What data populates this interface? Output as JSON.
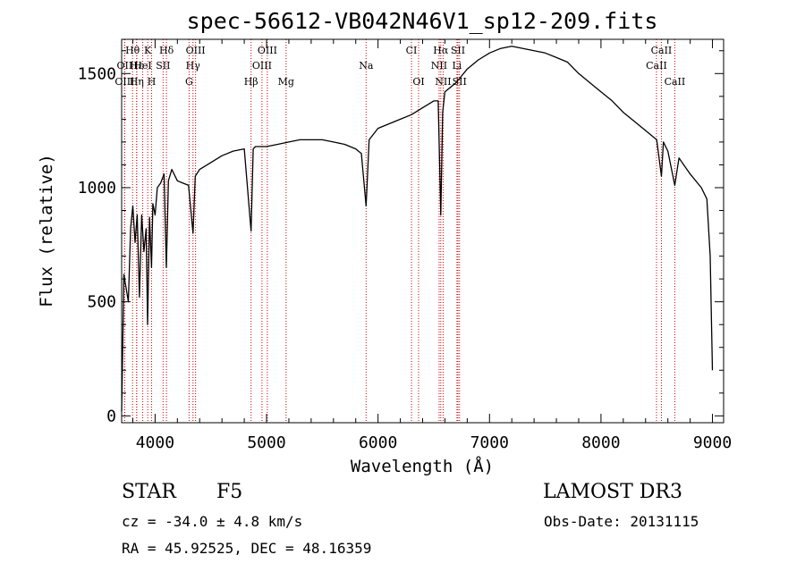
{
  "chart_data": {
    "type": "line",
    "title": "spec-56612-VB042N46V1_sp12-209.fits",
    "xlabel": "Wavelength (Å)",
    "ylabel": "Flux (relative)",
    "xlim": [
      3700,
      9100
    ],
    "ylim": [
      -30,
      1650
    ],
    "x_ticks": [
      4000,
      5000,
      6000,
      7000,
      8000,
      9000
    ],
    "x_tick_labels": [
      "4000",
      "5000",
      "6000",
      "7000",
      "8000",
      "9000"
    ],
    "y_ticks": [
      0,
      500,
      1000,
      1500
    ],
    "y_tick_labels": [
      "0",
      "500",
      "1000",
      "1500"
    ],
    "series": [
      {
        "name": "spectrum",
        "x": [
          3700,
          3720,
          3740,
          3760,
          3780,
          3800,
          3820,
          3840,
          3860,
          3880,
          3900,
          3920,
          3933,
          3950,
          3968,
          3980,
          4000,
          4020,
          4050,
          4080,
          4101,
          4120,
          4150,
          4200,
          4250,
          4300,
          4340,
          4360,
          4400,
          4500,
          4600,
          4700,
          4800,
          4861,
          4880,
          4900,
          5000,
          5100,
          5200,
          5300,
          5400,
          5500,
          5600,
          5700,
          5800,
          5850,
          5893,
          5920,
          6000,
          6100,
          6200,
          6300,
          6400,
          6500,
          6540,
          6563,
          6580,
          6600,
          6700,
          6800,
          6900,
          7000,
          7100,
          7200,
          7300,
          7400,
          7500,
          7600,
          7700,
          7800,
          7900,
          8000,
          8100,
          8200,
          8300,
          8400,
          8500,
          8542,
          8560,
          8600,
          8662,
          8700,
          8800,
          8900,
          8950,
          8980,
          9000
        ],
        "y": [
          20,
          620,
          560,
          500,
          820,
          920,
          760,
          880,
          520,
          880,
          720,
          820,
          400,
          870,
          650,
          930,
          880,
          1000,
          1020,
          1060,
          650,
          1030,
          1080,
          1030,
          1020,
          1010,
          800,
          1050,
          1080,
          1110,
          1140,
          1160,
          1170,
          810,
          1170,
          1180,
          1180,
          1190,
          1200,
          1210,
          1210,
          1210,
          1200,
          1190,
          1170,
          1150,
          920,
          1210,
          1260,
          1280,
          1300,
          1320,
          1350,
          1380,
          1380,
          880,
          1330,
          1420,
          1460,
          1520,
          1560,
          1590,
          1610,
          1620,
          1610,
          1600,
          1590,
          1570,
          1550,
          1500,
          1460,
          1420,
          1380,
          1330,
          1290,
          1250,
          1210,
          1050,
          1200,
          1160,
          1010,
          1130,
          1060,
          1000,
          950,
          700,
          200
        ]
      }
    ],
    "spectral_lines": [
      {
        "label": "Hθ",
        "wavelength": 3798,
        "row": 1
      },
      {
        "label": "K",
        "wavelength": 3934,
        "row": 1
      },
      {
        "label": "Hδ",
        "wavelength": 4102,
        "row": 1
      },
      {
        "label": "OIII",
        "wavelength": 4363,
        "row": 1
      },
      {
        "label": "OIII",
        "wavelength": 5007,
        "row": 1
      },
      {
        "label": "CI",
        "wavelength": 6300,
        "row": 1
      },
      {
        "label": "Hα",
        "wavelength": 6563,
        "row": 1
      },
      {
        "label": "SII",
        "wavelength": 6717,
        "row": 1
      },
      {
        "label": "CaII",
        "wavelength": 8542,
        "row": 1
      },
      {
        "label": "OII",
        "wavelength": 3727,
        "row": 2
      },
      {
        "label": "Hε",
        "wavelength": 3835,
        "row": 2
      },
      {
        "label": "HeI",
        "wavelength": 3889,
        "row": 2
      },
      {
        "label": "SII",
        "wavelength": 4072,
        "row": 2
      },
      {
        "label": "Hγ",
        "wavelength": 4340,
        "row": 2
      },
      {
        "label": "OIII",
        "wavelength": 4959,
        "row": 2
      },
      {
        "label": "Na",
        "wavelength": 5893,
        "row": 2
      },
      {
        "label": "NII",
        "wavelength": 6548,
        "row": 2
      },
      {
        "label": "Li",
        "wavelength": 6708,
        "row": 2
      },
      {
        "label": "CaII",
        "wavelength": 8498,
        "row": 2
      },
      {
        "label": "OIII",
        "wavelength": 3727,
        "row": 3
      },
      {
        "label": "Hη",
        "wavelength": 3835,
        "row": 3
      },
      {
        "label": "H",
        "wavelength": 3969,
        "row": 3
      },
      {
        "label": "G",
        "wavelength": 4305,
        "row": 3
      },
      {
        "label": "Hβ",
        "wavelength": 4861,
        "row": 3
      },
      {
        "label": "Mg",
        "wavelength": 5175,
        "row": 3
      },
      {
        "label": "OI",
        "wavelength": 6364,
        "row": 3
      },
      {
        "label": "NII",
        "wavelength": 6584,
        "row": 3
      },
      {
        "label": "SII",
        "wavelength": 6731,
        "row": 3
      },
      {
        "label": "CaII",
        "wavelength": 8662,
        "row": 3
      }
    ],
    "line_color": "#000000",
    "marker_color": "#cc0000"
  },
  "info": {
    "object_class": "STAR",
    "subclass": "F5",
    "survey": "LAMOST DR3",
    "redshift": "cz = -34.0 ± 4.8 km/s",
    "obs_date": "Obs-Date: 20131115",
    "coordinates": "RA =  45.92525, DEC =  48.16359"
  }
}
